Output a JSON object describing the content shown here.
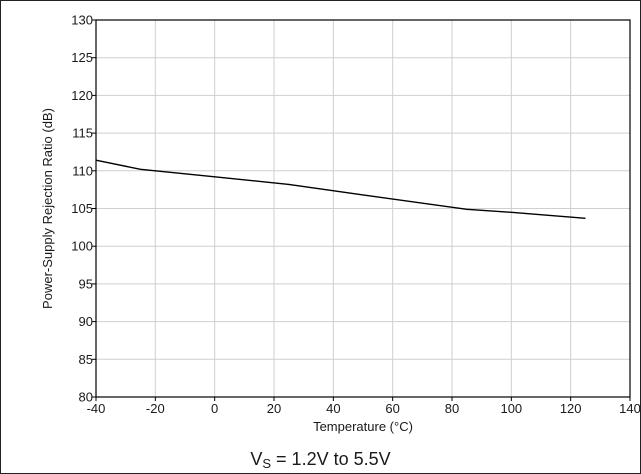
{
  "chart_data": {
    "type": "line",
    "title": "",
    "xlabel": "Temperature (°C)",
    "ylabel": "Power-Supply Rejection Ratio (dB)",
    "xlim": [
      -40,
      140
    ],
    "ylim": [
      80,
      130
    ],
    "x_ticks": [
      -40,
      -20,
      0,
      20,
      40,
      60,
      80,
      100,
      120,
      140
    ],
    "y_ticks": [
      80,
      85,
      90,
      95,
      100,
      105,
      110,
      115,
      120,
      125,
      130
    ],
    "grid": true,
    "legend": "none",
    "series": [
      {
        "color": "#000000",
        "x": [
          -40,
          -25,
          0,
          25,
          50,
          85,
          100,
          125
        ],
        "y": [
          111.4,
          110.2,
          109.2,
          108.2,
          106.8,
          104.9,
          104.5,
          103.7
        ]
      }
    ]
  },
  "caption": {
    "prefix": "V",
    "subscript": "S",
    "suffix": " = 1.2V to 5.5V"
  },
  "colors": {
    "grid": "#cfcfcf",
    "axes": "#000000",
    "line": "#000000"
  }
}
